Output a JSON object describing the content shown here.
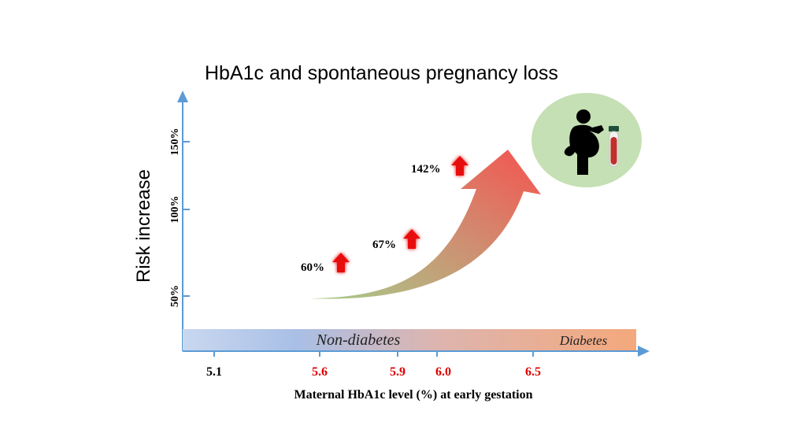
{
  "title": "HbA1c and spontaneous pregnancy loss",
  "y_axis": {
    "label": "Risk increase",
    "ticks": [
      "50%",
      "100%",
      "150%"
    ]
  },
  "x_axis": {
    "label": "Maternal HbA1c level (%) at early gestation",
    "ticks": [
      {
        "label": "5.1",
        "color": "#000000"
      },
      {
        "label": "5.6",
        "color": "#e00000"
      },
      {
        "label": "5.9",
        "color": "#e00000"
      },
      {
        "label": "6.0",
        "color": "#e00000"
      },
      {
        "label": "6.5",
        "color": "#e00000"
      }
    ]
  },
  "band": {
    "left_label": "Non-diabetes",
    "right_label": "Diabetes",
    "color_start": "#c6d6ef",
    "color_end": "#f4a87c"
  },
  "risk_points": [
    {
      "label": "60%",
      "icon": "up-arrow-icon"
    },
    {
      "label": "67%",
      "icon": "up-arrow-icon"
    },
    {
      "label": "142%",
      "icon": "up-arrow-icon"
    }
  ],
  "trend_arrow": {
    "color_start": "#a6cc8a",
    "color_end": "#f5534f"
  },
  "illustration": {
    "icon": "pregnant-woman-icon",
    "secondary_icon": "blood-tube-icon",
    "circle_color": "#c5e0b4"
  },
  "colors": {
    "axis": "#5b9bd5",
    "highlight": "#e00000",
    "arrow": "#e81010"
  }
}
